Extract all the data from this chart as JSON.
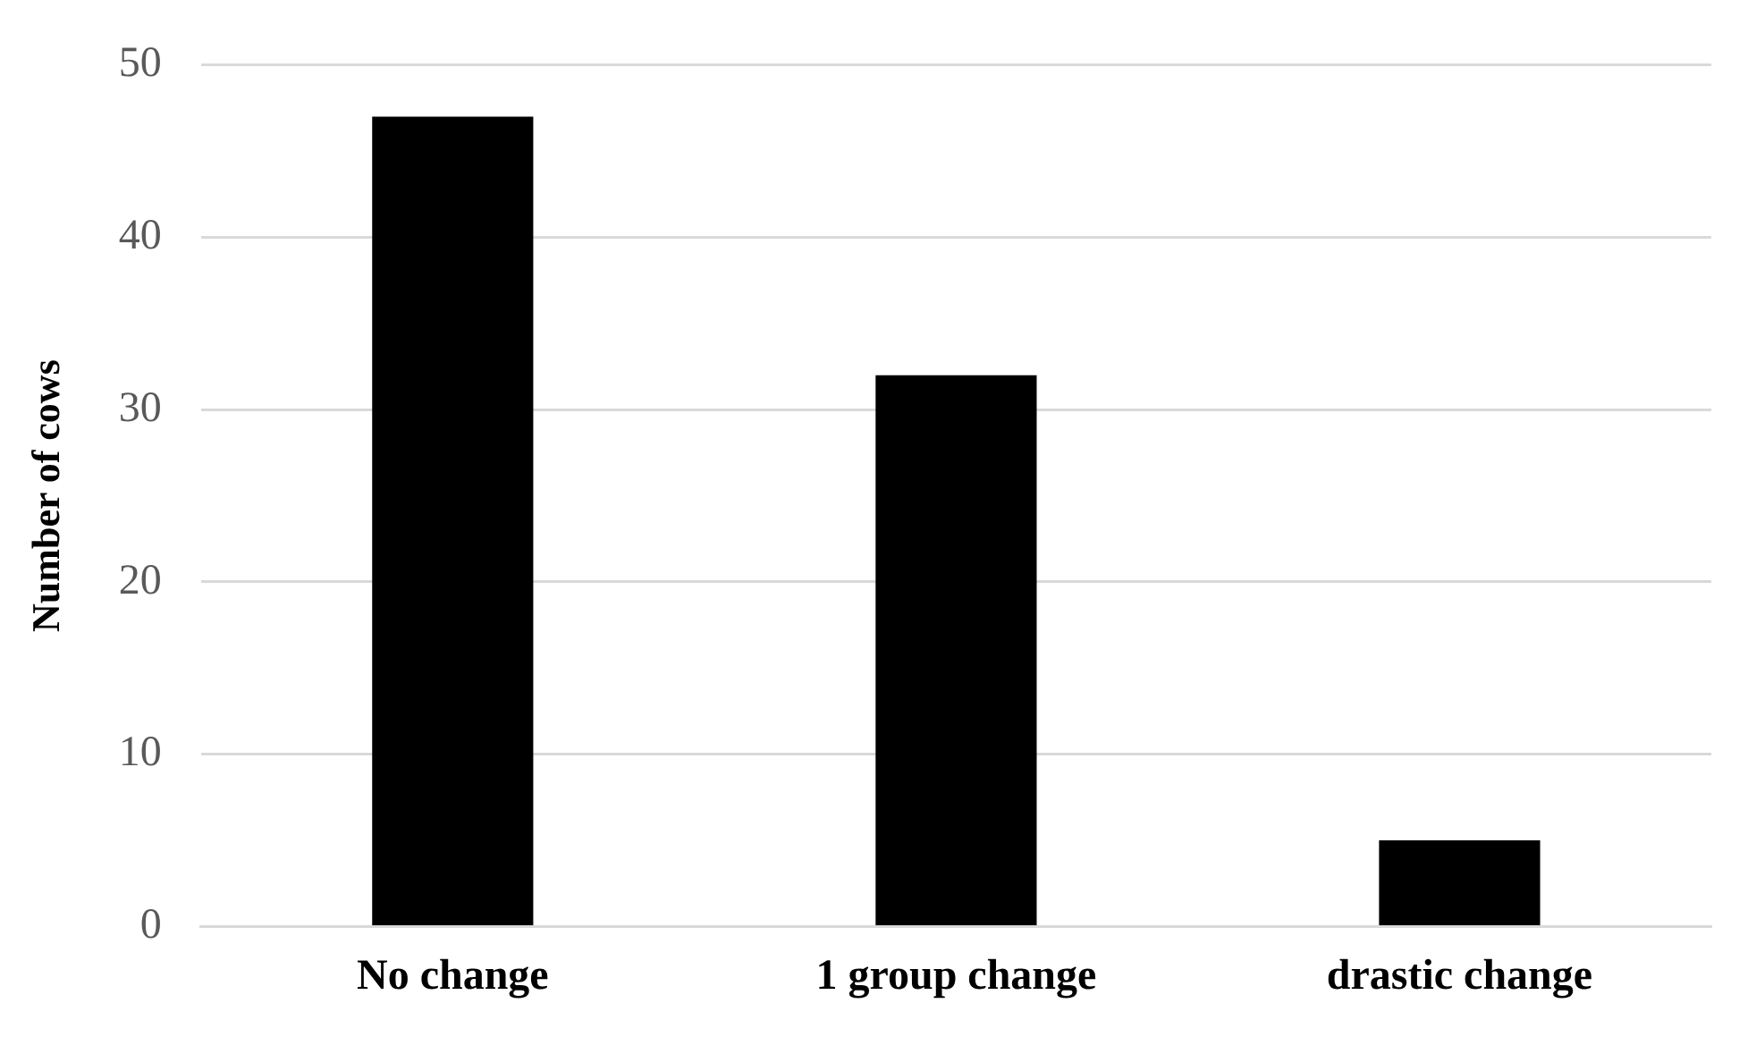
{
  "chart_data": {
    "type": "bar",
    "ylabel": "Number of cows",
    "categories": [
      "No change",
      "1 group change",
      "drastic change"
    ],
    "values": [
      47,
      32,
      5
    ],
    "color": "#000000",
    "ylim": [
      0,
      50
    ],
    "yticks": [
      0,
      10,
      20,
      30,
      40,
      50
    ],
    "grid": "y",
    "legend": false
  }
}
